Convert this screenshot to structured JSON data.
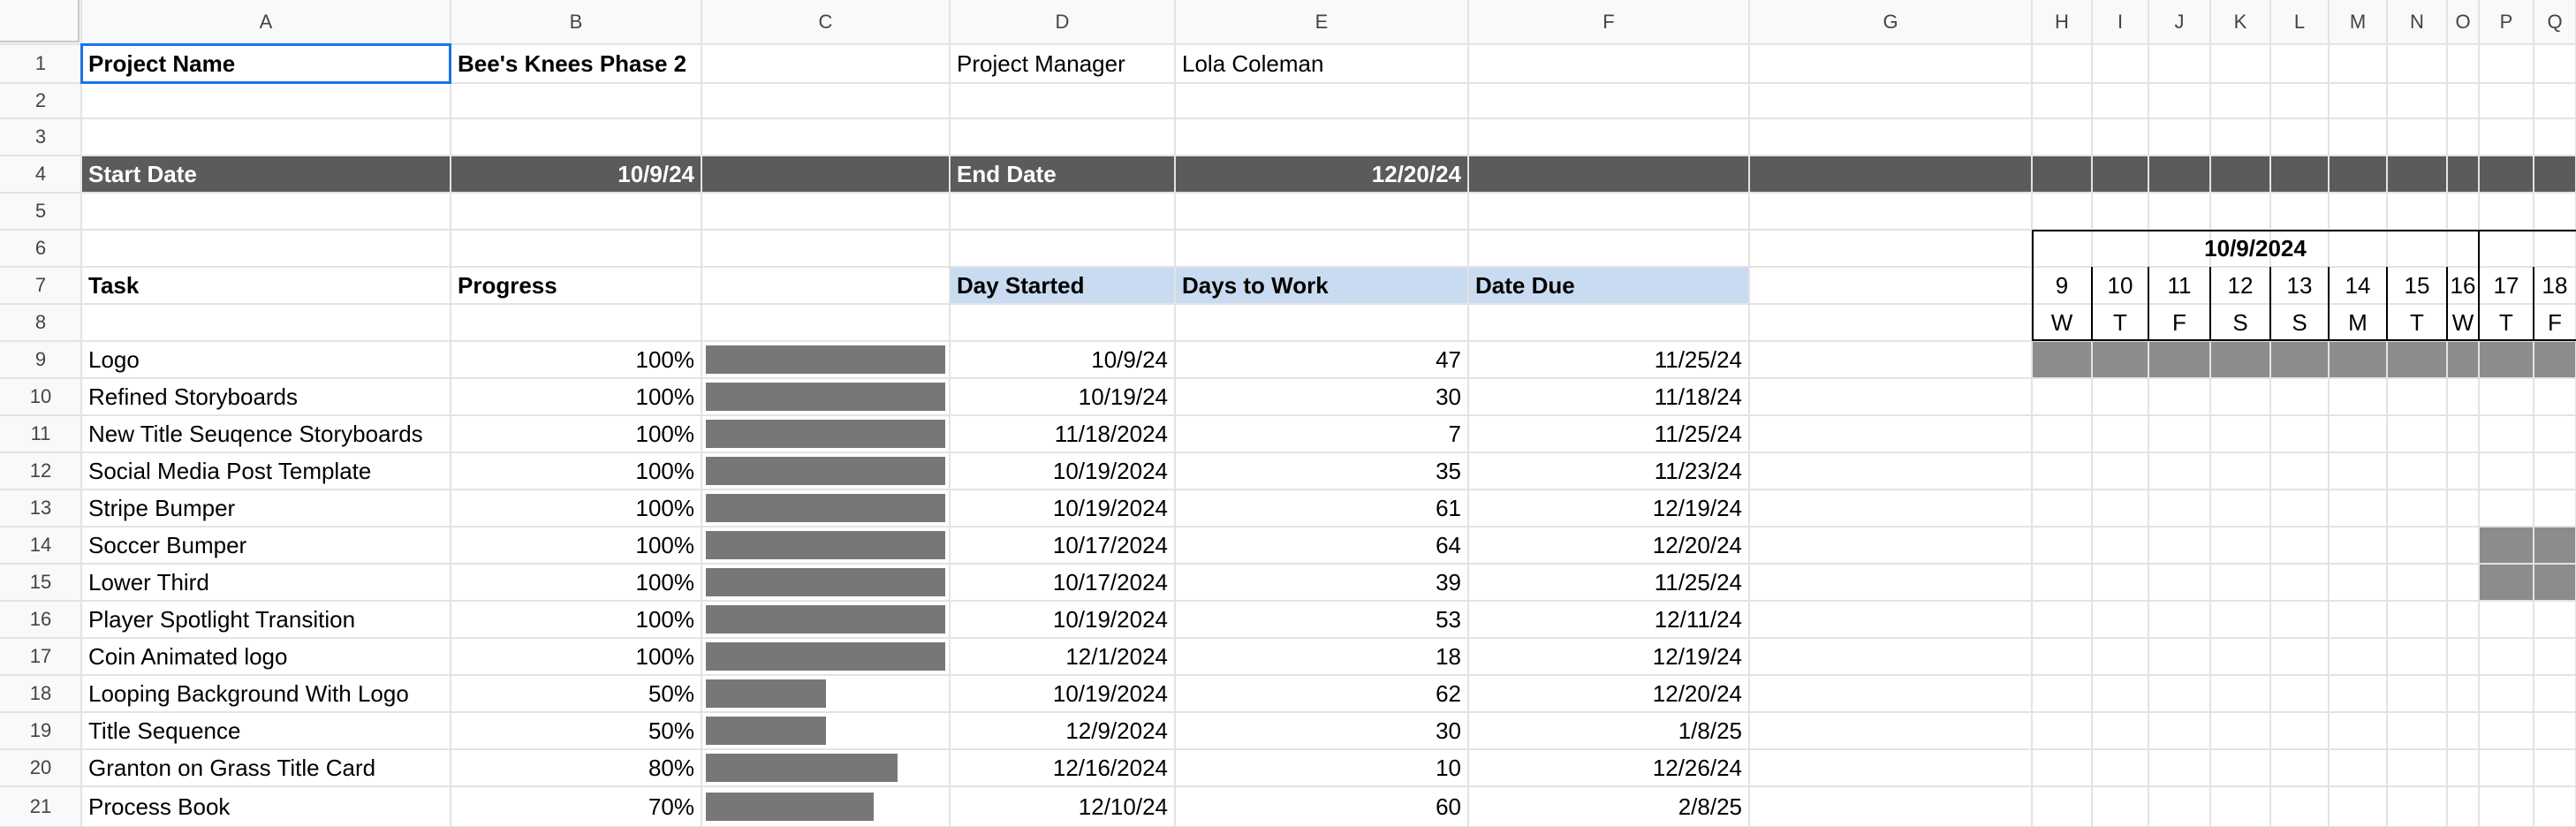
{
  "columns": [
    "A",
    "B",
    "C",
    "D",
    "E",
    "F",
    "G",
    "H",
    "I",
    "J",
    "K",
    "L",
    "M",
    "N",
    "O",
    "P",
    "Q"
  ],
  "rows": [
    "1",
    "2",
    "3",
    "4",
    "5",
    "6",
    "7",
    "8",
    "9",
    "10",
    "11",
    "12",
    "13",
    "14",
    "15",
    "16",
    "17",
    "18",
    "19",
    "20",
    "21"
  ],
  "project": {
    "name_label": "Project Name",
    "name_value": "Bee's Knees Phase 2",
    "manager_label": "Project Manager",
    "manager_value": "Lola Coleman",
    "start_label": "Start Date",
    "start_value": "10/9/24",
    "end_label": "End Date",
    "end_value": "12/20/24"
  },
  "table_headers": {
    "task": "Task",
    "progress": "Progress",
    "day_started": "Day Started",
    "days_to_work": "Days to Work",
    "date_due": "Date Due"
  },
  "tasks": [
    {
      "name": "Logo",
      "progress": "100%",
      "progress_value": 1.0,
      "day_started": "10/9/24",
      "days_to_work": "47",
      "date_due": "11/25/24"
    },
    {
      "name": "Refined Storyboards",
      "progress": "100%",
      "progress_value": 1.0,
      "day_started": "10/19/24",
      "days_to_work": "30",
      "date_due": "11/18/24"
    },
    {
      "name": "New Title Seuqence Storyboards",
      "progress": "100%",
      "progress_value": 1.0,
      "day_started": "11/18/2024",
      "days_to_work": "7",
      "date_due": "11/25/24"
    },
    {
      "name": "Social Media Post Template",
      "progress": "100%",
      "progress_value": 1.0,
      "day_started": "10/19/2024",
      "days_to_work": "35",
      "date_due": "11/23/24"
    },
    {
      "name": "Stripe Bumper",
      "progress": "100%",
      "progress_value": 1.0,
      "day_started": "10/19/2024",
      "days_to_work": "61",
      "date_due": "12/19/24"
    },
    {
      "name": "Soccer Bumper",
      "progress": "100%",
      "progress_value": 1.0,
      "day_started": "10/17/2024",
      "days_to_work": "64",
      "date_due": "12/20/24"
    },
    {
      "name": "Lower Third",
      "progress": "100%",
      "progress_value": 1.0,
      "day_started": "10/17/2024",
      "days_to_work": "39",
      "date_due": "11/25/24"
    },
    {
      "name": "Player Spotlight Transition",
      "progress": "100%",
      "progress_value": 1.0,
      "day_started": "10/19/2024",
      "days_to_work": "53",
      "date_due": "12/11/24"
    },
    {
      "name": "Coin Animated logo",
      "progress": "100%",
      "progress_value": 1.0,
      "day_started": "12/1/2024",
      "days_to_work": "18",
      "date_due": "12/19/24"
    },
    {
      "name": "Looping Background With Logo",
      "progress": "50%",
      "progress_value": 0.5,
      "day_started": "10/19/2024",
      "days_to_work": "62",
      "date_due": "12/20/24"
    },
    {
      "name": "Title Sequence",
      "progress": "50%",
      "progress_value": 0.5,
      "day_started": "12/9/2024",
      "days_to_work": "30",
      "date_due": "1/8/25"
    },
    {
      "name": "Granton on Grass Title Card",
      "progress": "80%",
      "progress_value": 0.8,
      "day_started": "12/16/2024",
      "days_to_work": "10",
      "date_due": "12/26/24"
    },
    {
      "name": "Process Book",
      "progress": "70%",
      "progress_value": 0.7,
      "day_started": "12/10/24",
      "days_to_work": "60",
      "date_due": "2/8/25"
    }
  ],
  "gantt": {
    "week_label": "10/9/2024",
    "days": [
      "9",
      "10",
      "11",
      "12",
      "13",
      "14",
      "15",
      "16",
      "17",
      "18"
    ],
    "weekdays": [
      "W",
      "T",
      "F",
      "S",
      "S",
      "M",
      "T",
      "W",
      "T",
      "F"
    ],
    "shaded": [
      {
        "row": 9,
        "from_day": "9",
        "to_day": "18"
      },
      {
        "row": 14,
        "from_day": "17",
        "to_day": "18"
      },
      {
        "row": 15,
        "from_day": "17",
        "to_day": "18"
      }
    ]
  },
  "colors": {
    "band": "#5b5b5b",
    "header_blue": "#c9dbf0",
    "progress_bar": "#777777",
    "gantt_fill": "#8c8c8c",
    "selection": "#1a73e8"
  }
}
